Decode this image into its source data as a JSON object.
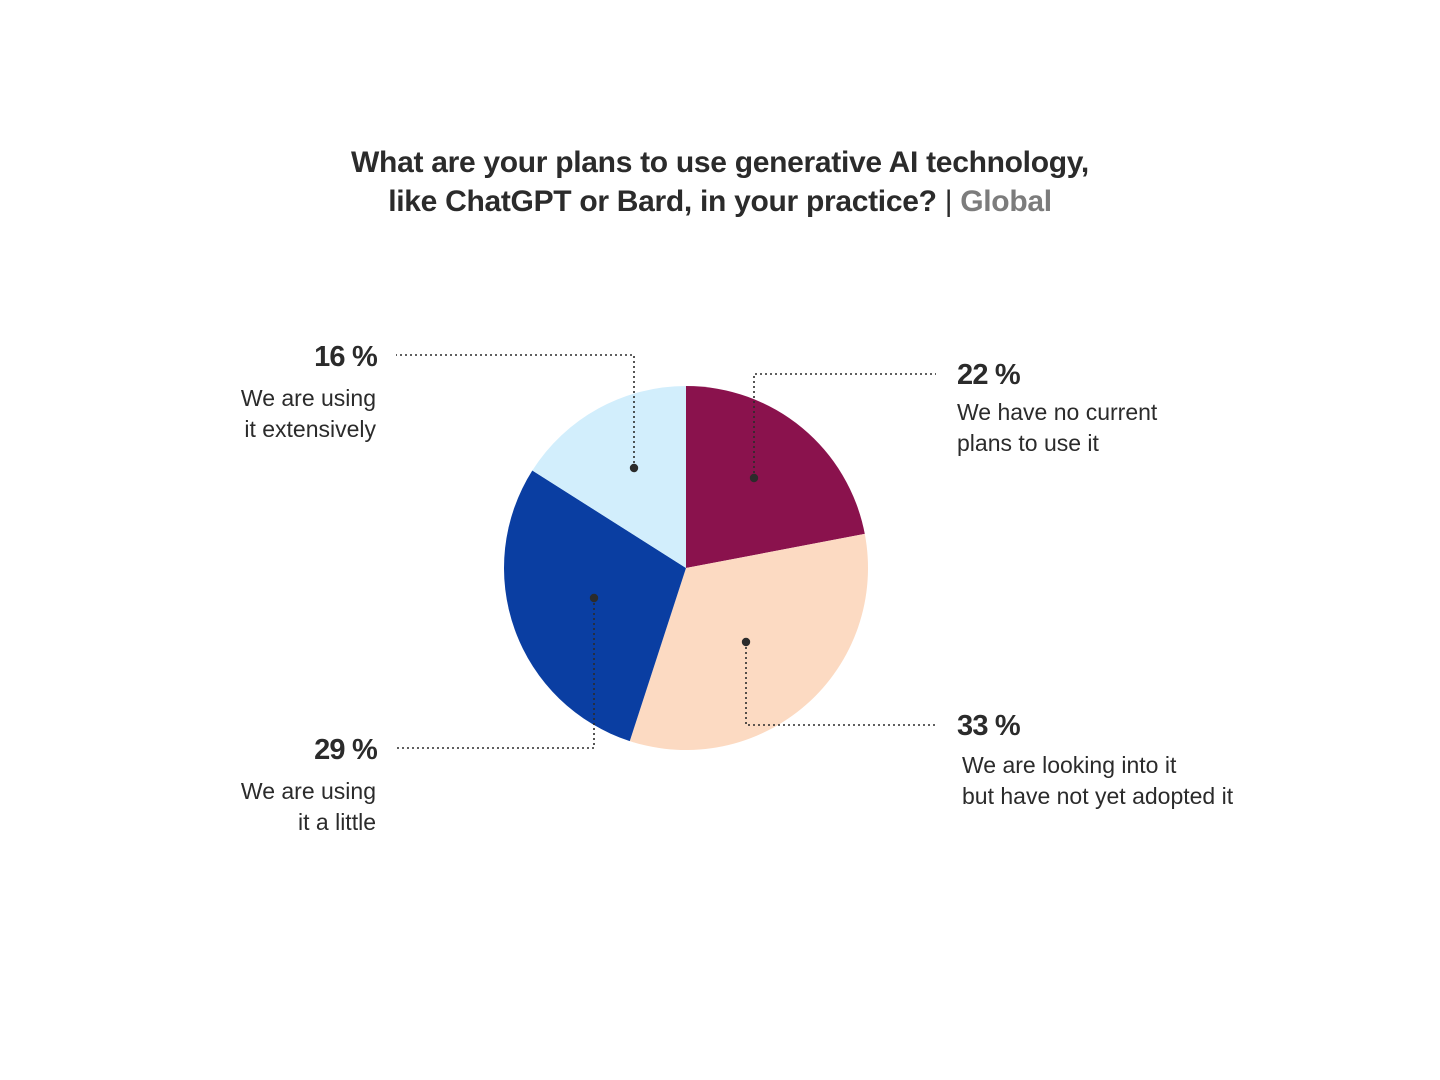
{
  "title": {
    "line1": "What are your plans to use generative AI technology,",
    "line2": "like ChatGPT or Bard, in your practice?",
    "separator": "|",
    "region": "Global"
  },
  "chart_data": {
    "type": "pie",
    "start_angle_deg": 0,
    "direction": "clockwise",
    "slices": [
      {
        "value": 22,
        "value_label": "22 %",
        "label_lines": [
          "We have no current",
          "plans to use it"
        ],
        "color": "#8a124d"
      },
      {
        "value": 33,
        "value_label": "33 %",
        "label_lines": [
          "We are looking into it",
          "but have not yet adopted it"
        ],
        "color": "#fcdac2"
      },
      {
        "value": 29,
        "value_label": "29 %",
        "label_lines": [
          "We are using",
          "it a little"
        ],
        "color": "#0a3ea2"
      },
      {
        "value": 16,
        "value_label": "16 %",
        "label_lines": [
          "We are using",
          "it extensively"
        ],
        "color": "#d2eefc"
      }
    ]
  }
}
